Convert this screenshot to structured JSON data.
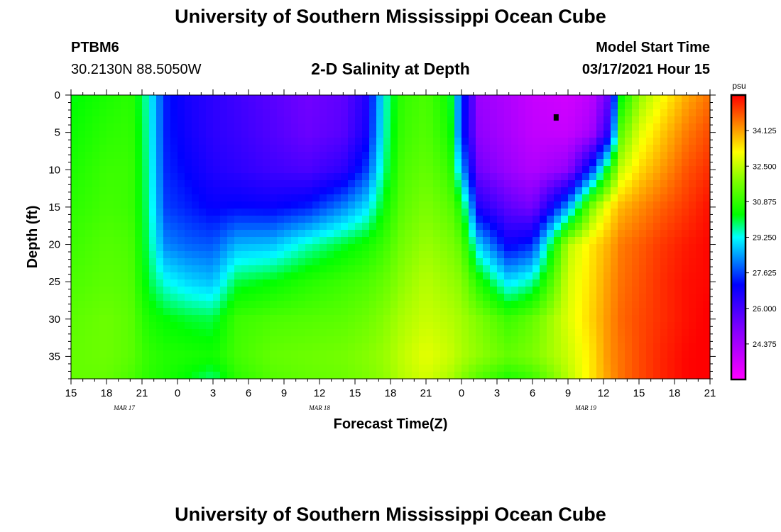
{
  "title_top": "University of Southern Mississippi Ocean Cube",
  "title_bottom": "University of Southern Mississippi Ocean Cube",
  "station": {
    "id": "PTBM6",
    "coords": "30.2130N 88.5050W"
  },
  "plot_title": "2-D Salinity at Depth",
  "model_start": {
    "label": "Model Start Time",
    "value": "03/17/2021 Hour 15"
  },
  "colors": {
    "background": "#ffffff",
    "text": "#000000",
    "marker": "#000000"
  },
  "chart_data": {
    "type": "heatmap",
    "title": "2-D Salinity at Depth",
    "xlabel": "Forecast Time(Z)",
    "ylabel": "Depth (ft)",
    "x_unit": "hours since 03/17/2021 15Z",
    "x_range": [
      0,
      54
    ],
    "x_ticks": [
      {
        "h": 0,
        "label": "15"
      },
      {
        "h": 3,
        "label": "18"
      },
      {
        "h": 6,
        "label": "21"
      },
      {
        "h": 9,
        "label": "0"
      },
      {
        "h": 12,
        "label": "3"
      },
      {
        "h": 15,
        "label": "6"
      },
      {
        "h": 18,
        "label": "9"
      },
      {
        "h": 21,
        "label": "12"
      },
      {
        "h": 24,
        "label": "15"
      },
      {
        "h": 27,
        "label": "18"
      },
      {
        "h": 30,
        "label": "21"
      },
      {
        "h": 33,
        "label": "0"
      },
      {
        "h": 36,
        "label": "3"
      },
      {
        "h": 39,
        "label": "6"
      },
      {
        "h": 42,
        "label": "9"
      },
      {
        "h": 45,
        "label": "12"
      },
      {
        "h": 48,
        "label": "15"
      },
      {
        "h": 51,
        "label": "18"
      },
      {
        "h": 54,
        "label": "21"
      }
    ],
    "date_labels": [
      {
        "h": 4.5,
        "label": "MAR 17"
      },
      {
        "h": 21,
        "label": "MAR 18"
      },
      {
        "h": 43.5,
        "label": "MAR 19"
      }
    ],
    "ylim": [
      0,
      38
    ],
    "y_ticks": [
      0,
      5,
      10,
      15,
      20,
      25,
      30,
      35
    ],
    "y_inverted": true,
    "colorbar": {
      "unit": "psu",
      "range": [
        22.75,
        35.75
      ],
      "tick_values": [
        34.125,
        32.5,
        30.875,
        29.25,
        27.625,
        26.0,
        24.375
      ],
      "tick_labels": [
        "34.125",
        "32.500",
        "30.875",
        "29.250",
        "27.625",
        "26.000",
        "24.375"
      ]
    },
    "grid": "x_columns",
    "depths_ft": [
      0,
      5,
      10,
      15,
      20,
      25,
      30,
      35,
      38
    ],
    "columns": [
      {
        "h": 0,
        "values": [
          30.2,
          30.4,
          30.6,
          30.8,
          31.0,
          31.2,
          31.4,
          31.5,
          31.5
        ]
      },
      {
        "h": 3,
        "values": [
          30.6,
          30.8,
          31.0,
          31.1,
          31.3,
          31.4,
          31.6,
          31.6,
          31.5
        ]
      },
      {
        "h": 5,
        "values": [
          30.8,
          30.9,
          31.0,
          31.0,
          31.2,
          31.3,
          31.4,
          31.4,
          31.2
        ]
      },
      {
        "h": 6.5,
        "values": [
          29.5,
          29.6,
          29.7,
          29.8,
          29.9,
          30.1,
          30.6,
          30.9,
          30.8
        ]
      },
      {
        "h": 8,
        "values": [
          27.3,
          27.3,
          27.4,
          27.6,
          28.2,
          29.3,
          30.3,
          30.7,
          30.6
        ]
      },
      {
        "h": 10,
        "values": [
          26.7,
          26.8,
          27.0,
          27.3,
          27.9,
          28.9,
          30.1,
          30.6,
          30.2
        ]
      },
      {
        "h": 12,
        "values": [
          26.4,
          26.4,
          26.6,
          27.0,
          27.8,
          28.7,
          30.0,
          30.5,
          29.8
        ]
      },
      {
        "h": 14,
        "values": [
          26.1,
          26.2,
          26.4,
          27.1,
          28.6,
          30.0,
          31.0,
          31.1,
          30.8
        ]
      },
      {
        "h": 17,
        "values": [
          25.7,
          25.8,
          26.1,
          27.0,
          28.7,
          30.3,
          31.2,
          31.5,
          31.3
        ]
      },
      {
        "h": 20,
        "values": [
          25.3,
          25.4,
          25.9,
          27.3,
          29.5,
          30.7,
          31.3,
          31.6,
          31.5
        ]
      },
      {
        "h": 23,
        "values": [
          25.6,
          25.7,
          26.4,
          28.2,
          30.1,
          31.0,
          31.4,
          31.7,
          31.6
        ]
      },
      {
        "h": 25,
        "values": [
          26.6,
          26.8,
          27.6,
          29.0,
          30.5,
          31.2,
          31.6,
          31.9,
          31.8
        ]
      },
      {
        "h": 26.5,
        "values": [
          29.4,
          29.5,
          29.8,
          30.4,
          31.0,
          31.5,
          31.9,
          32.1,
          32.0
        ]
      },
      {
        "h": 28,
        "values": [
          30.9,
          31.0,
          31.2,
          31.4,
          31.7,
          32.0,
          32.3,
          32.5,
          32.4
        ]
      },
      {
        "h": 30,
        "values": [
          31.2,
          31.3,
          31.5,
          31.8,
          32.1,
          32.4,
          32.6,
          32.9,
          32.7
        ]
      },
      {
        "h": 32,
        "values": [
          30.4,
          30.6,
          31.0,
          31.4,
          31.8,
          32.1,
          32.4,
          32.6,
          32.3
        ]
      },
      {
        "h": 33,
        "values": [
          27.6,
          27.5,
          28.6,
          30.5,
          31.4,
          31.9,
          32.2,
          32.3,
          31.9
        ]
      },
      {
        "h": 34.5,
        "values": [
          24.6,
          24.8,
          25.3,
          26.6,
          28.8,
          30.6,
          31.8,
          32.0,
          31.3
        ]
      },
      {
        "h": 37,
        "values": [
          24.2,
          24.3,
          24.6,
          25.6,
          26.9,
          29.0,
          31.0,
          31.5,
          30.6
        ]
      },
      {
        "h": 39,
        "values": [
          23.8,
          23.9,
          24.2,
          25.2,
          27.4,
          29.6,
          31.5,
          31.8,
          31.0
        ]
      },
      {
        "h": 42,
        "values": [
          23.6,
          23.8,
          24.8,
          28.4,
          32.4,
          32.7,
          32.8,
          32.6,
          32.4
        ]
      },
      {
        "h": 44,
        "values": [
          24.0,
          24.4,
          27.5,
          31.8,
          33.4,
          33.5,
          33.6,
          33.4,
          33.4
        ]
      },
      {
        "h": 45.5,
        "values": [
          25.6,
          26.6,
          30.6,
          33.3,
          34.0,
          34.2,
          34.3,
          34.3,
          34.2
        ]
      },
      {
        "h": 46.5,
        "values": [
          30.2,
          31.4,
          32.6,
          33.9,
          34.5,
          34.6,
          34.7,
          34.6,
          34.6
        ]
      },
      {
        "h": 48,
        "values": [
          32.0,
          32.8,
          33.5,
          34.3,
          34.8,
          34.9,
          35.0,
          35.0,
          35.0
        ]
      },
      {
        "h": 50,
        "values": [
          33.1,
          33.7,
          34.2,
          34.8,
          35.2,
          35.3,
          35.3,
          35.4,
          35.4
        ]
      },
      {
        "h": 52,
        "values": [
          34.0,
          34.5,
          34.9,
          35.2,
          35.5,
          35.6,
          35.6,
          35.7,
          35.7
        ]
      },
      {
        "h": 54,
        "values": [
          34.6,
          35.0,
          35.3,
          35.6,
          35.7,
          35.7,
          35.8,
          35.8,
          35.8
        ]
      }
    ],
    "marker": {
      "h": 41,
      "depth_ft": 3
    }
  }
}
